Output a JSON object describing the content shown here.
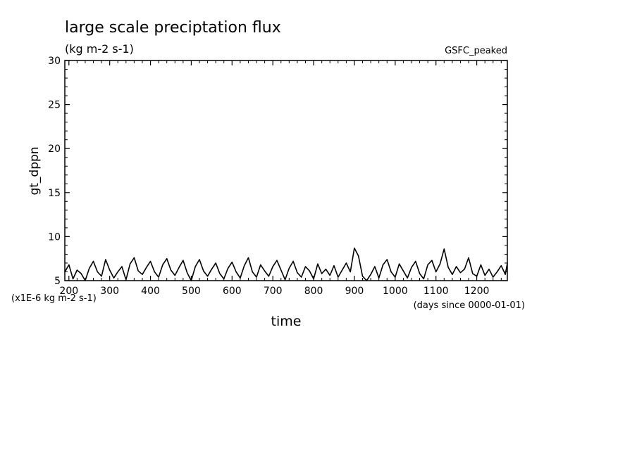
{
  "chart_data": {
    "type": "line",
    "title": "large scale preciptation flux",
    "units": "(kg m-2 s-1)",
    "label_top_right": "GSFC_peaked",
    "xlabel": "time",
    "x_unit_note": "(days since 0000-01-01)",
    "ylabel": "gt_dppn",
    "y_unit_note": "(x1E-6 kg m-2 s-1)",
    "xlim": [
      190,
      1275
    ],
    "ylim": [
      5,
      30
    ],
    "x_ticks": [
      200,
      300,
      400,
      500,
      600,
      700,
      800,
      900,
      1000,
      1100,
      1200
    ],
    "y_ticks": [
      5,
      10,
      15,
      20,
      25,
      30
    ],
    "grid": false,
    "series": [
      {
        "color": "#000000",
        "x": [
          190,
          200,
          210,
          220,
          230,
          240,
          250,
          260,
          270,
          280,
          290,
          300,
          310,
          320,
          330,
          340,
          350,
          360,
          370,
          380,
          390,
          400,
          410,
          420,
          430,
          440,
          450,
          460,
          470,
          480,
          490,
          500,
          510,
          520,
          530,
          540,
          550,
          560,
          570,
          580,
          590,
          600,
          610,
          620,
          630,
          640,
          650,
          660,
          670,
          680,
          690,
          700,
          710,
          720,
          730,
          740,
          750,
          760,
          770,
          780,
          790,
          800,
          810,
          820,
          830,
          840,
          850,
          860,
          870,
          880,
          890,
          900,
          910,
          920,
          930,
          940,
          950,
          960,
          970,
          980,
          990,
          1000,
          1010,
          1020,
          1030,
          1040,
          1050,
          1060,
          1070,
          1080,
          1090,
          1100,
          1110,
          1120,
          1130,
          1140,
          1150,
          1160,
          1170,
          1180,
          1190,
          1200,
          1210,
          1220,
          1230,
          1240,
          1250,
          1260,
          1270,
          1275
        ],
        "values": [
          6.0,
          6.8,
          5.2,
          6.2,
          5.8,
          5.0,
          6.4,
          7.2,
          6.0,
          5.5,
          7.4,
          6.2,
          5.3,
          6.0,
          6.6,
          5.1,
          6.9,
          7.6,
          6.1,
          5.7,
          6.5,
          7.2,
          6.0,
          5.4,
          6.8,
          7.5,
          6.2,
          5.6,
          6.5,
          7.3,
          5.9,
          5.0,
          6.6,
          7.4,
          6.1,
          5.5,
          6.3,
          7.0,
          5.8,
          5.2,
          6.4,
          7.1,
          6.0,
          5.3,
          6.7,
          7.6,
          6.0,
          5.4,
          6.8,
          6.1,
          5.5,
          6.6,
          7.3,
          6.2,
          5.1,
          6.4,
          7.2,
          5.9,
          5.4,
          6.6,
          6.1,
          5.2,
          6.9,
          5.8,
          6.3,
          5.6,
          6.7,
          5.4,
          6.2,
          7.0,
          6.0,
          8.7,
          7.8,
          5.5,
          4.8,
          5.7,
          6.6,
          5.3,
          6.8,
          7.4,
          6.0,
          5.4,
          6.9,
          6.1,
          5.3,
          6.5,
          7.2,
          5.8,
          5.2,
          6.8,
          7.3,
          6.0,
          6.9,
          8.6,
          6.5,
          5.7,
          6.6,
          5.9,
          6.3,
          7.6,
          5.8,
          5.5,
          6.8,
          5.6,
          6.3,
          5.4,
          6.0,
          6.7,
          5.7,
          7.0
        ]
      }
    ]
  }
}
